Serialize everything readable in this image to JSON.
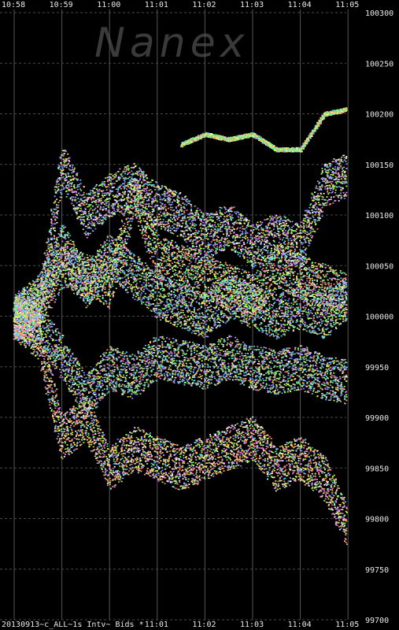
{
  "chart_data": {
    "type": "scatter",
    "watermark": "Nanex",
    "footer_label": "20130913~c_ALL~1s Intv~ Bids *",
    "x_ticks_top": [
      "10:58",
      "10:59",
      "11:00",
      "11:01",
      "11:02",
      "11:03",
      "11:04",
      "11:05"
    ],
    "x_ticks_bottom": [
      "11:01",
      "11:02",
      "11:03",
      "11:04",
      "11:05"
    ],
    "y_ticks": [
      "100300",
      "100250",
      "100200",
      "100150",
      "100100",
      "100050",
      "100000",
      "99950",
      "99900",
      "99850",
      "99800",
      "99750",
      "99700"
    ],
    "ylim": [
      99700,
      100300
    ],
    "grid": true,
    "colors": [
      "#ff7f7f",
      "#ffa060",
      "#ffd060",
      "#e0ff60",
      "#80ff80",
      "#60e0a0",
      "#60d0ff",
      "#7fa0ff",
      "#a080ff",
      "#ff80ff",
      "#ffffff",
      "#c0ff40"
    ],
    "series": [
      {
        "x": [
          0,
          0.5,
          1,
          1.5,
          2,
          2.5,
          3,
          3.5,
          4,
          4.5,
          5,
          5.5,
          6,
          6.5,
          7
        ],
        "y": [
          100000,
          100010,
          100050,
          100040,
          100030,
          100120,
          100060,
          100050,
          100040,
          100030,
          100020,
          100050,
          100040,
          100030,
          100020
        ]
      },
      {
        "x": [
          0,
          0.5,
          1,
          1.5,
          2,
          2.5,
          3,
          3.5,
          4,
          4.5,
          5,
          5.5,
          6,
          6.5,
          7
        ],
        "y": [
          100000,
          99990,
          99960,
          99920,
          99950,
          99940,
          99960,
          99955,
          99950,
          99960,
          99950,
          99945,
          99950,
          99940,
          99935
        ]
      },
      {
        "x": [
          0,
          0.5,
          1,
          1.5,
          2,
          2.5,
          3,
          3.5,
          4,
          4.5,
          5,
          5.5,
          6,
          6.5,
          7
        ],
        "y": [
          100000,
          100000,
          100150,
          100100,
          100120,
          100130,
          100110,
          100100,
          100080,
          100090,
          100070,
          100080,
          100070,
          100130,
          100140
        ]
      },
      {
        "x": [
          0,
          0.5,
          1,
          1.5,
          2,
          2.5,
          3,
          3.5,
          4,
          4.5,
          5,
          5.5,
          6,
          6.5,
          7
        ],
        "y": [
          100000,
          99980,
          99880,
          99900,
          99850,
          99870,
          99860,
          99850,
          99860,
          99870,
          99880,
          99850,
          99860,
          99840,
          99790
        ]
      },
      {
        "x": [
          3.5,
          4,
          4.5,
          5,
          5.5,
          6,
          6.5,
          7
        ],
        "y": [
          100170,
          100180,
          100175,
          100180,
          100165,
          100165,
          100200,
          100205
        ]
      },
      {
        "x": [
          0,
          0.5,
          1,
          1.5,
          2,
          2.5,
          3,
          3.5,
          4,
          4.5,
          5,
          5.5,
          6,
          6.5,
          7
        ],
        "y": [
          100000,
          100020,
          100070,
          100030,
          100060,
          100040,
          100020,
          100010,
          100000,
          100020,
          100010,
          100000,
          100010,
          100000,
          100020
        ]
      }
    ]
  }
}
